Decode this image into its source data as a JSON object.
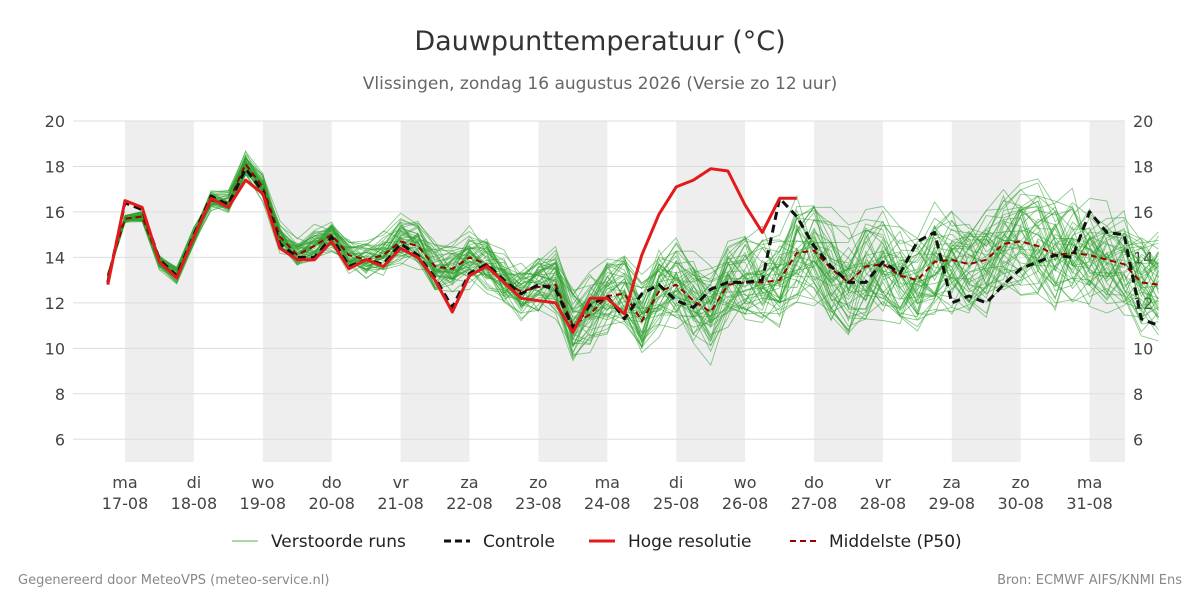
{
  "chart_data": {
    "type": "line",
    "title": "Dauwpunttemperatuur (°C)",
    "subtitle": "Vlissingen, zondag 16 augustus 2026 (Versie zo 12 uur)",
    "ylim": [
      5,
      20
    ],
    "yticks": [
      6,
      8,
      10,
      12,
      14,
      16,
      18,
      20
    ],
    "x_range_days": [
      -0.25,
      15.05
    ],
    "grid": true,
    "legend_position": "bottom",
    "day_labels": [
      {
        "day": "ma",
        "date": "17-08"
      },
      {
        "day": "di",
        "date": "18-08"
      },
      {
        "day": "wo",
        "date": "19-08"
      },
      {
        "day": "do",
        "date": "20-08"
      },
      {
        "day": "vr",
        "date": "21-08"
      },
      {
        "day": "za",
        "date": "22-08"
      },
      {
        "day": "zo",
        "date": "23-08"
      },
      {
        "day": "ma",
        "date": "24-08"
      },
      {
        "day": "di",
        "date": "25-08"
      },
      {
        "day": "wo",
        "date": "26-08"
      },
      {
        "day": "do",
        "date": "27-08"
      },
      {
        "day": "vr",
        "date": "28-08"
      },
      {
        "day": "za",
        "date": "29-08"
      },
      {
        "day": "zo",
        "date": "30-08"
      },
      {
        "day": "ma",
        "date": "31-08"
      }
    ],
    "shaded_days": [
      0,
      2,
      4,
      6,
      8,
      10,
      12,
      14
    ],
    "colors": {
      "ensemble": "#2ca02c",
      "control": "#111111",
      "high_res": "#e31a1c",
      "median": "#990000",
      "shade": "#eeeeee",
      "grid": "#dddddd"
    },
    "series": [
      {
        "name": "Hoge resolutie",
        "style": "solid",
        "color": "#e31a1c",
        "x": [
          -0.25,
          0,
          0.25,
          0.5,
          0.75,
          1,
          1.25,
          1.5,
          1.75,
          2,
          2.25,
          2.5,
          2.75,
          3,
          3.25,
          3.5,
          3.75,
          4,
          4.25,
          4.5,
          4.75,
          5,
          5.25,
          5.5,
          5.75,
          6,
          6.25,
          6.5,
          6.75,
          7,
          7.25,
          7.5,
          7.75,
          8,
          8.25,
          8.5,
          8.75,
          9,
          9.25,
          9.5,
          9.75
        ],
        "y": [
          12.8,
          16.5,
          16.2,
          13.8,
          13.1,
          14.9,
          16.6,
          16.2,
          17.4,
          16.8,
          14.4,
          13.9,
          13.9,
          14.7,
          13.5,
          13.9,
          13.6,
          14.4,
          14.0,
          13.0,
          11.6,
          13.2,
          13.6,
          12.9,
          12.2,
          12.1,
          12.0,
          10.7,
          12.2,
          12.2,
          11.5,
          14.1,
          15.9,
          17.1,
          17.4,
          17.9,
          17.8,
          16.3,
          15.1,
          16.6,
          16.6
        ]
      },
      {
        "name": "Controle",
        "style": "dashed",
        "color": "#111111",
        "x": [
          -0.25,
          0,
          0.25,
          0.5,
          0.75,
          1,
          1.25,
          1.5,
          1.75,
          2,
          2.25,
          2.5,
          2.75,
          3,
          3.25,
          3.5,
          3.75,
          4,
          4.25,
          4.5,
          4.75,
          5,
          5.25,
          5.5,
          5.75,
          6,
          6.25,
          6.5,
          6.75,
          7,
          7.25,
          7.5,
          7.75,
          8,
          8.25,
          8.5,
          8.75,
          9,
          9.25,
          9.5,
          9.75,
          10,
          10.25,
          10.5,
          10.75,
          11,
          11.25,
          11.5,
          11.75,
          12,
          12.25,
          12.5,
          12.75,
          13,
          13.25,
          13.5,
          13.75,
          14,
          14.25,
          14.5,
          14.75,
          15
        ],
        "y": [
          12.9,
          16.4,
          16.1,
          13.9,
          13.2,
          15.0,
          16.7,
          16.3,
          17.9,
          16.9,
          14.6,
          14.0,
          14.0,
          14.9,
          13.6,
          13.9,
          13.7,
          14.6,
          14.1,
          13.1,
          11.8,
          13.3,
          13.7,
          13.0,
          12.4,
          12.8,
          12.6,
          10.9,
          11.9,
          12.3,
          11.3,
          12.4,
          12.8,
          12.1,
          11.8,
          12.6,
          12.9,
          12.9,
          13.0,
          16.6,
          15.8,
          14.5,
          13.6,
          12.9,
          12.9,
          13.8,
          13.3,
          14.7,
          15.1,
          12.0,
          12.3,
          12.0,
          12.8,
          13.5,
          13.8,
          14.1,
          14.0,
          16.0,
          15.1,
          15.0,
          11.3,
          11.0
        ]
      },
      {
        "name": "Middelste (P50)",
        "style": "dashed",
        "color": "#990000",
        "x": [
          -0.25,
          0,
          0.25,
          0.5,
          0.75,
          1,
          1.25,
          1.5,
          1.75,
          2,
          2.25,
          2.5,
          2.75,
          3,
          3.25,
          3.5,
          3.75,
          4,
          4.25,
          4.5,
          4.75,
          5,
          5.25,
          5.5,
          5.75,
          6,
          6.25,
          6.5,
          6.75,
          7,
          7.25,
          7.5,
          7.75,
          8,
          8.25,
          8.5,
          8.75,
          9,
          9.25,
          9.5,
          9.75,
          10,
          10.25,
          10.5,
          10.75,
          11,
          11.25,
          11.5,
          11.75,
          12,
          12.25,
          12.5,
          12.75,
          13,
          13.25,
          13.5,
          13.75,
          14,
          14.25,
          14.5,
          14.75,
          15
        ],
        "y": [
          13.2,
          15.7,
          15.8,
          13.8,
          13.2,
          14.9,
          16.5,
          16.4,
          18.1,
          17.1,
          14.9,
          14.1,
          14.5,
          15.0,
          14.1,
          13.9,
          14.1,
          14.7,
          14.5,
          13.6,
          13.5,
          14.0,
          13.7,
          12.9,
          12.5,
          12.7,
          12.8,
          11.0,
          11.5,
          12.3,
          12.4,
          11.2,
          12.5,
          12.8,
          12.1,
          11.6,
          12.8,
          12.9,
          12.9,
          13.0,
          14.2,
          14.3,
          13.5,
          12.9,
          13.6,
          13.7,
          13.2,
          13.0,
          13.8,
          13.9,
          13.7,
          13.9,
          14.6,
          14.7,
          14.5,
          14.1,
          14.2,
          14.1,
          13.9,
          13.7,
          12.9,
          12.8
        ]
      }
    ],
    "ensemble_count": 50
  },
  "legend": {
    "ensemble_label": "Verstoorde runs",
    "control_label": "Controle",
    "high_res_label": "Hoge resolutie",
    "median_label": "Middelste (P50)"
  },
  "footer": {
    "left": "Gegenereerd door MeteoVPS (meteo-service.nl)",
    "right": "Bron: ECMWF AIFS/KNMI Ens"
  }
}
